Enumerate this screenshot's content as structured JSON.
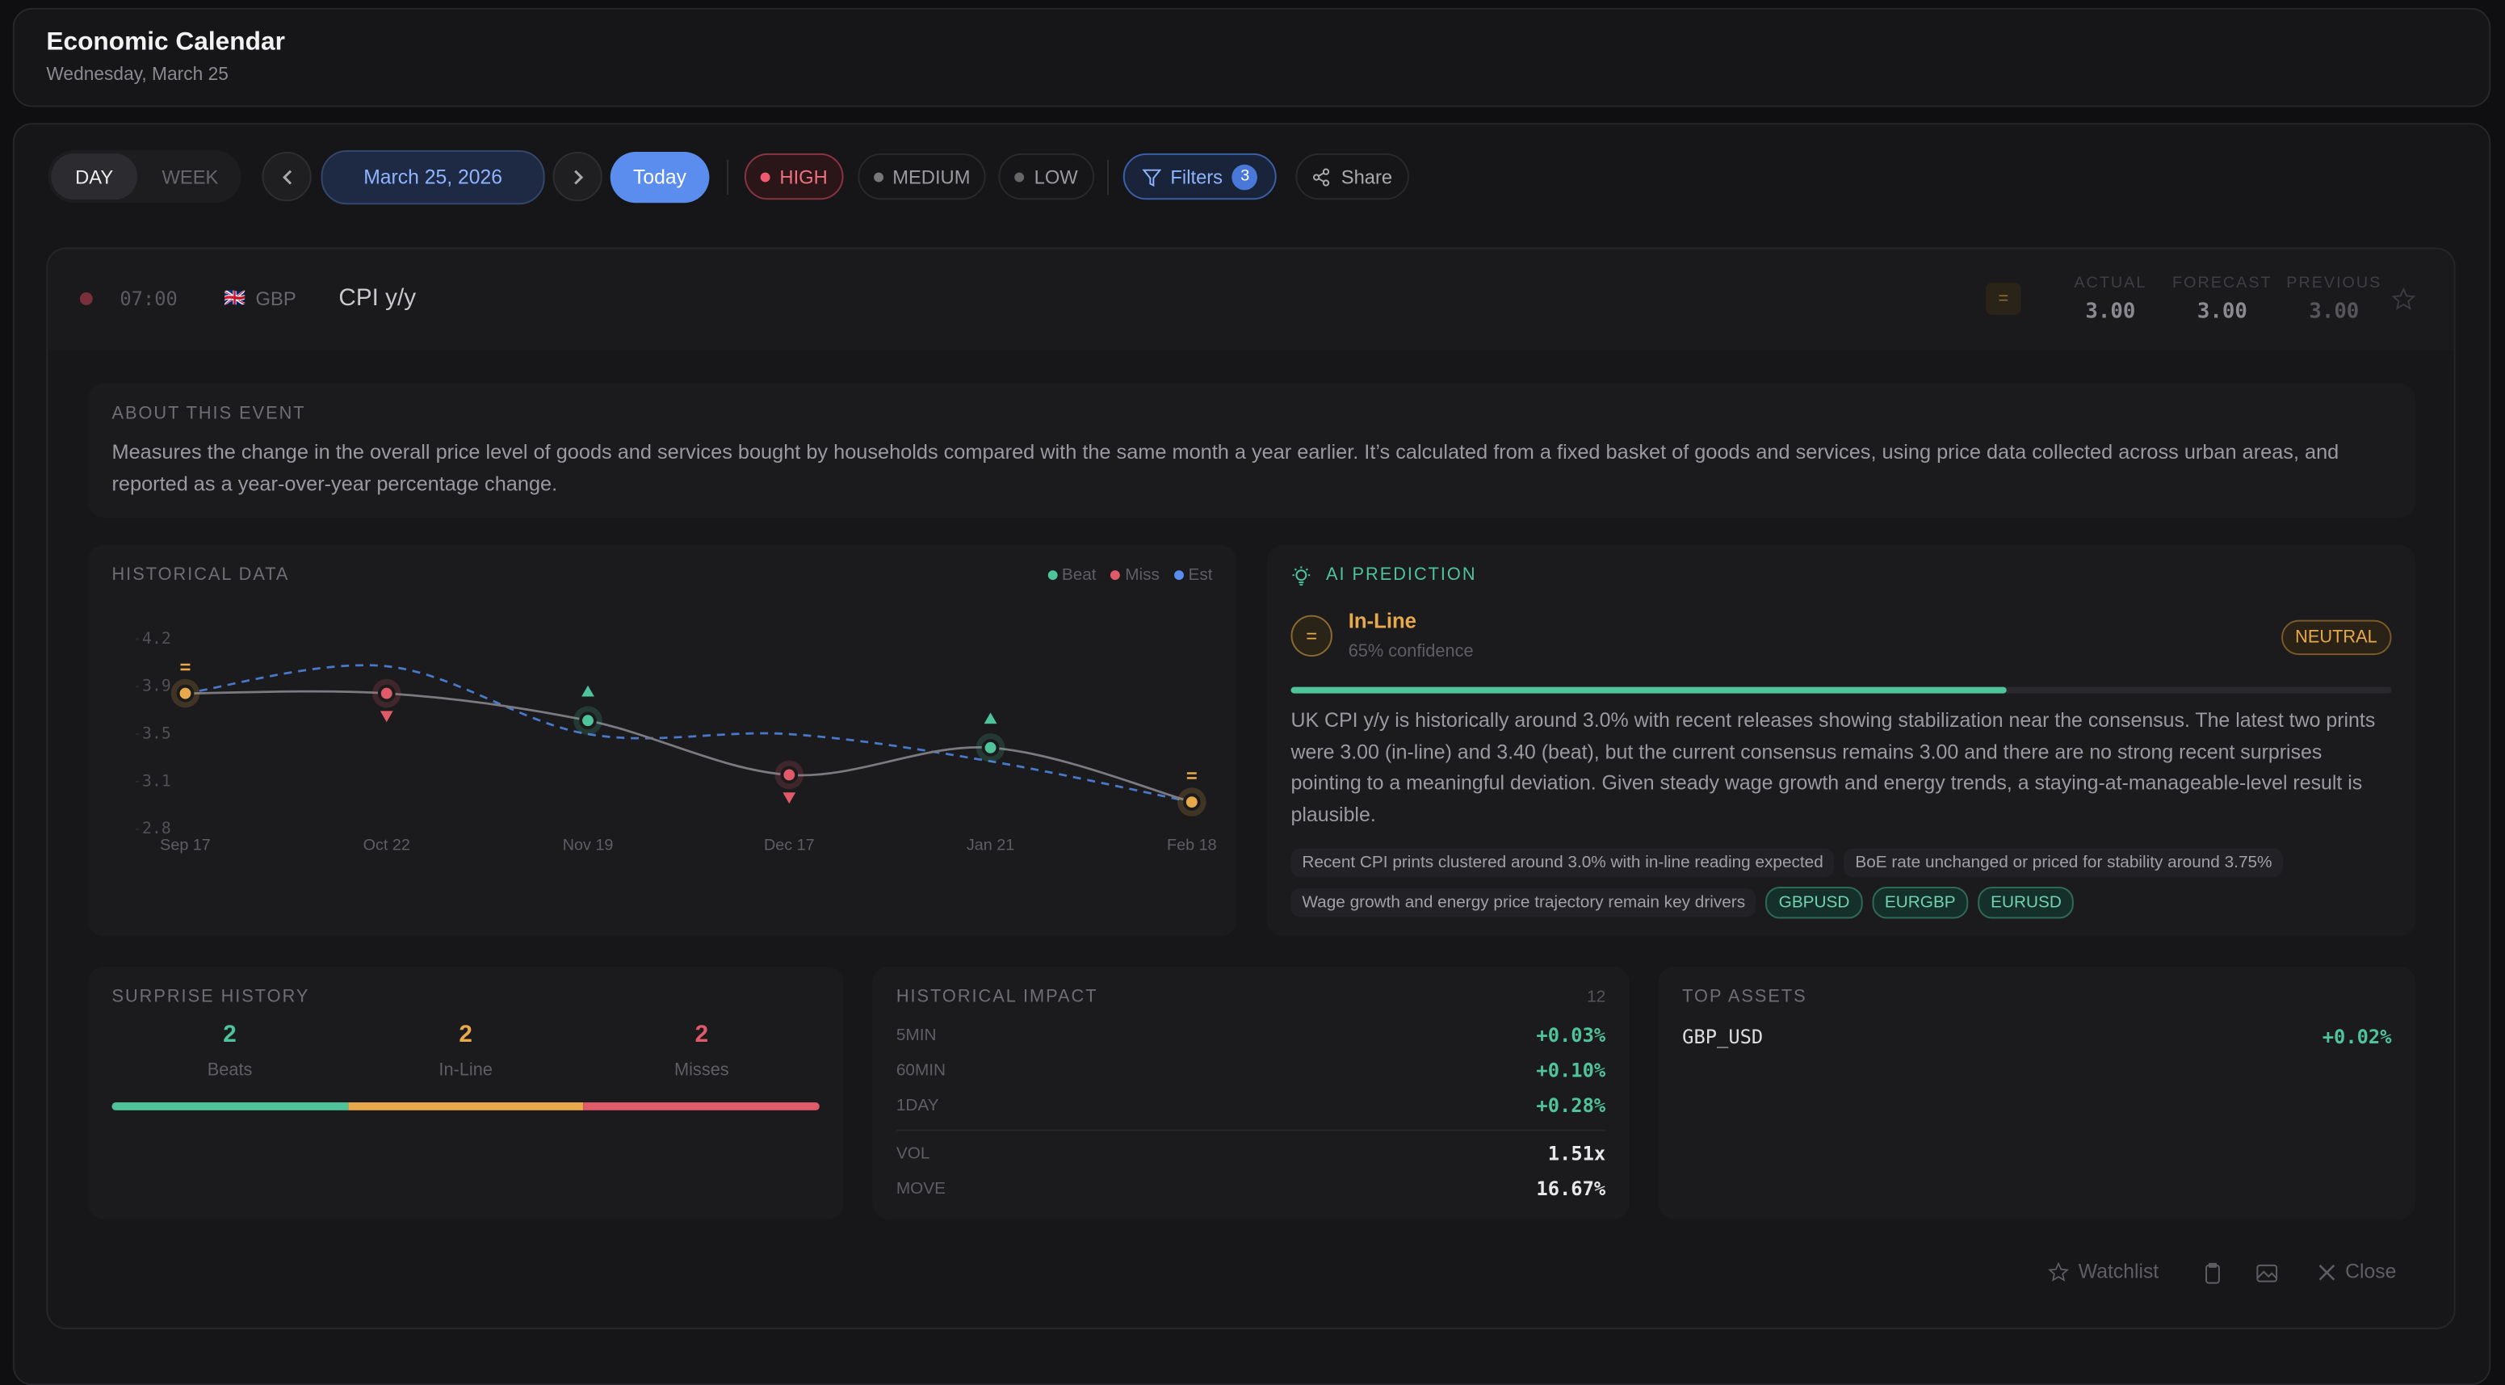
{
  "header": {
    "title": "Economic Calendar",
    "subtitle": "Wednesday, March 25"
  },
  "toolbar": {
    "views": [
      "DAY",
      "WEEK"
    ],
    "date": "March 25, 2026",
    "today": "Today",
    "impacts": [
      "HIGH",
      "MEDIUM",
      "LOW"
    ],
    "filters": "Filters",
    "filter_count": "3",
    "share": "Share"
  },
  "event": {
    "time": "07:00",
    "flag": "🇬🇧",
    "currency": "GBP",
    "name": "CPI y/y",
    "badge": "=",
    "actual_label": "ACTUAL",
    "actual": "3.00",
    "forecast_label": "FORECAST",
    "forecast": "3.00",
    "previous_label": "PREVIOUS",
    "previous": "3.00"
  },
  "about": {
    "heading": "ABOUT THIS EVENT",
    "text": "Measures the change in the overall price level of goods and services bought by households compared with the same month a year earlier. It’s calculated from a fixed basket of goods and services, using price data collected across urban areas, and reported as a year-over-year percentage change."
  },
  "chart_data": {
    "type": "line",
    "title": "HISTORICAL DATA",
    "categories": [
      "Sep 17",
      "Oct 22",
      "Nov 19",
      "Dec 17",
      "Jan 21",
      "Feb 18"
    ],
    "series": [
      {
        "color": "#7a7a80",
        "values": [
          3.8,
          3.8,
          3.6,
          3.2,
          3.4,
          3.0
        ]
      },
      {
        "color": "#4a78c8",
        "dashed": true,
        "values": [
          3.8,
          4.0,
          3.5,
          3.5,
          3.3,
          3.0
        ]
      }
    ],
    "legend": [
      {
        "name": "Beat",
        "color": "#4fc39a"
      },
      {
        "name": "Miss",
        "color": "#e05a6a"
      },
      {
        "name": "Est",
        "color": "#5b8def"
      }
    ],
    "inline_color": "#e8a94a",
    "ylim": [
      2.8,
      4.2
    ],
    "yticks": [
      2.8,
      {
        "value": 3.15,
        "label": "3.1"
      },
      3.5,
      {
        "value": 3.85,
        "label": "3.9"
      },
      4.2
    ]
  },
  "prediction": {
    "heading": "AI PREDICTION",
    "symbol": "=",
    "outcome": "In-Line",
    "confidence": {
      "value": 65,
      "label": "65% confidence"
    },
    "stance": "NEUTRAL",
    "text": "UK CPI y/y is historically around 3.0% with recent releases showing stabilization near the consensus. The latest two prints were 3.00 (in-line) and 3.40 (beat), but the current consensus remains 3.00 and there are no strong recent surprises pointing to a meaningful deviation. Given steady wage growth and energy trends, a staying-at-manageable-level result is plausible.",
    "factors": [
      "Recent CPI prints clustered around 3.0% with in-line reading expected",
      "BoE rate unchanged or priced for stability around 3.75%",
      "Wage growth and energy price trajectory remain key drivers"
    ],
    "assets": [
      "GBPUSD",
      "EURGBP",
      "EURUSD"
    ]
  },
  "surprise": {
    "heading": "SURPRISE HISTORY",
    "items": [
      {
        "count": 2,
        "label": "Beats",
        "color": "#4fc39a"
      },
      {
        "count": 2,
        "label": "In-Line",
        "color": "#e8a94a"
      },
      {
        "count": 2,
        "label": "Misses",
        "color": "#e05a6a"
      }
    ]
  },
  "impact": {
    "heading": "HISTORICAL IMPACT",
    "count": "12",
    "rows": [
      [
        "5MIN",
        "+0.03%"
      ],
      [
        "60MIN",
        "+0.10%"
      ],
      [
        "1DAY",
        "+0.28%"
      ]
    ],
    "stats": [
      [
        "VOL",
        "1.51x"
      ],
      [
        "MOVE",
        "16.67%"
      ]
    ]
  },
  "top_assets": {
    "heading": "TOP ASSETS",
    "rows": [
      [
        "GBP_USD",
        "+0.02%"
      ]
    ]
  },
  "footer": {
    "watchlist": "Watchlist",
    "close": "Close"
  }
}
